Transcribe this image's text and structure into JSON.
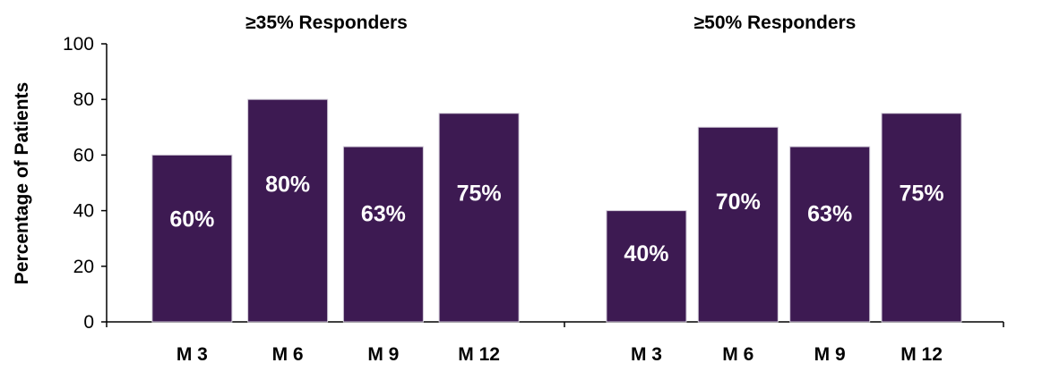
{
  "chart_data": {
    "type": "bar",
    "ylabel": "Percentage of Patients",
    "ylim": [
      0,
      100
    ],
    "yticks": [
      "0",
      "20",
      "40",
      "60",
      "80",
      "100"
    ],
    "grid": false,
    "bar_color": "#3d1a52",
    "groups": [
      {
        "title": "≥35%  Responders",
        "categories": [
          "M 3",
          "M 6",
          "M 9",
          "M 12"
        ],
        "values": [
          60,
          80,
          63,
          75
        ],
        "labels": [
          "60%",
          "80%",
          "63%",
          "75%"
        ]
      },
      {
        "title": "≥50%  Responders",
        "categories": [
          "M 3",
          "M 6",
          "M 9",
          "M 12"
        ],
        "values": [
          40,
          70,
          63,
          75
        ],
        "labels": [
          "40%",
          "70%",
          "63%",
          "75%"
        ]
      }
    ]
  }
}
